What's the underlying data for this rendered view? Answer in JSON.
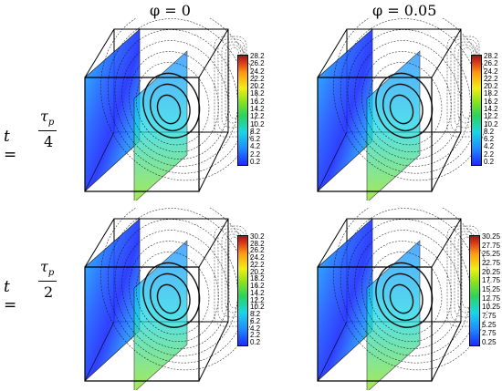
{
  "columns": [
    {
      "label": "φ = 0"
    },
    {
      "label": "φ = 0.05"
    }
  ],
  "rows": [
    {
      "lhs": "t =",
      "numerator": "τ",
      "numerator_sub": "p",
      "denominator": "4"
    },
    {
      "lhs": "t =",
      "numerator": "τ",
      "numerator_sub": "p",
      "denominator": "2"
    }
  ],
  "colorbars": [
    {
      "ticks": [
        "28.2",
        "26.2",
        "24.2",
        "22.2",
        "20.2",
        "18.2",
        "16.2",
        "14.2",
        "12.2",
        "10.2",
        "8.2",
        "6.2",
        "4.2",
        "2.2",
        "0.2"
      ]
    },
    {
      "ticks": [
        "28.2",
        "26.2",
        "24.2",
        "22.2",
        "20.2",
        "18.2",
        "16.2",
        "14.2",
        "12.2",
        "10.2",
        "8.2",
        "6.2",
        "4.2",
        "2.2",
        "0.2"
      ]
    },
    {
      "ticks": [
        "30.2",
        "28.2",
        "26.2",
        "24.2",
        "22.2",
        "20.2",
        "18.2",
        "16.2",
        "14.2",
        "12.2",
        "10.2",
        "8.2",
        "6.2",
        "4.2",
        "2.2",
        "0.2"
      ]
    },
    {
      "ticks": [
        "30.25",
        "27.75",
        "25.25",
        "22.75",
        "20.25",
        "17.75",
        "15.25",
        "12.75",
        "10.25",
        "7.75",
        "5.25",
        "2.75",
        "0.25"
      ]
    }
  ],
  "colors": {
    "low": "#1a2bff",
    "mid": "#2bd35c",
    "high": "#9c1810"
  }
}
